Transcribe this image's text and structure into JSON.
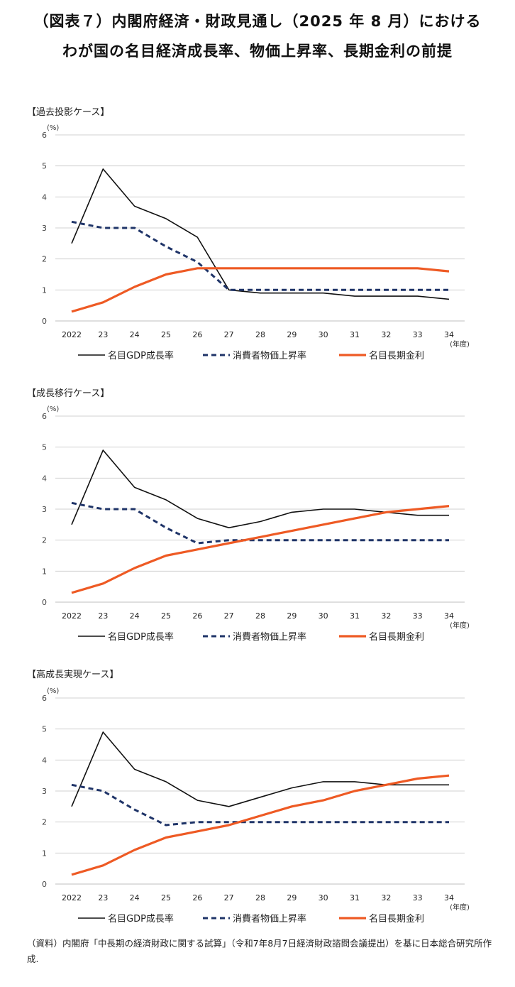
{
  "title_line1": "（図表７）内閣府経済・財政見通し（2025 年 8 月）における",
  "title_line2": "わが国の名目経済成長率、物価上昇率、長期金利の前提",
  "source_note": "（資料）内閣府「中長期の経済財政に関する試算」（令和7年8月7日経済財政諮問会議提出）を基に日本総合研究所作成.",
  "colors": {
    "gdp": "#111111",
    "cpi": "#1f3468",
    "rate": "#ee5a24",
    "grid": "#d0d0d0"
  },
  "chart_data": [
    {
      "type": "line",
      "title": "【過去投影ケース】",
      "unit_label": "(%)",
      "x_unit_label": "(年度)",
      "categories": [
        "2022",
        "23",
        "24",
        "25",
        "26",
        "27",
        "28",
        "29",
        "30",
        "31",
        "32",
        "33",
        "34"
      ],
      "ylim": [
        0,
        6
      ],
      "yticks": [
        "0",
        "1",
        "2",
        "3",
        "4",
        "5",
        "6"
      ],
      "series": [
        {
          "name": "名目GDP成長率",
          "key": "gdp",
          "values": [
            2.5,
            4.9,
            3.7,
            3.3,
            2.7,
            1.0,
            0.9,
            0.9,
            0.9,
            0.8,
            0.8,
            0.8,
            0.7
          ]
        },
        {
          "name": "消費者物価上昇率",
          "key": "cpi",
          "values": [
            3.2,
            3.0,
            3.0,
            2.4,
            1.9,
            1.0,
            1.0,
            1.0,
            1.0,
            1.0,
            1.0,
            1.0,
            1.0
          ]
        },
        {
          "name": "名目長期金利",
          "key": "rate",
          "values": [
            0.3,
            0.6,
            1.1,
            1.5,
            1.7,
            1.7,
            1.7,
            1.7,
            1.7,
            1.7,
            1.7,
            1.7,
            1.6
          ]
        }
      ]
    },
    {
      "type": "line",
      "title": "【成長移行ケース】",
      "unit_label": "(%)",
      "x_unit_label": "(年度)",
      "categories": [
        "2022",
        "23",
        "24",
        "25",
        "26",
        "27",
        "28",
        "29",
        "30",
        "31",
        "32",
        "33",
        "34"
      ],
      "ylim": [
        0,
        6
      ],
      "yticks": [
        "0",
        "1",
        "2",
        "3",
        "4",
        "5",
        "6"
      ],
      "series": [
        {
          "name": "名目GDP成長率",
          "key": "gdp",
          "values": [
            2.5,
            4.9,
            3.7,
            3.3,
            2.7,
            2.4,
            2.6,
            2.9,
            3.0,
            3.0,
            2.9,
            2.8,
            2.8
          ]
        },
        {
          "name": "消費者物価上昇率",
          "key": "cpi",
          "values": [
            3.2,
            3.0,
            3.0,
            2.4,
            1.9,
            2.0,
            2.0,
            2.0,
            2.0,
            2.0,
            2.0,
            2.0,
            2.0
          ]
        },
        {
          "name": "名目長期金利",
          "key": "rate",
          "values": [
            0.3,
            0.6,
            1.1,
            1.5,
            1.7,
            1.9,
            2.1,
            2.3,
            2.5,
            2.7,
            2.9,
            3.0,
            3.1
          ]
        }
      ]
    },
    {
      "type": "line",
      "title": "【高成長実現ケース】",
      "unit_label": "(%)",
      "x_unit_label": "(年度)",
      "categories": [
        "2022",
        "23",
        "24",
        "25",
        "26",
        "27",
        "28",
        "29",
        "30",
        "31",
        "32",
        "33",
        "34"
      ],
      "ylim": [
        0,
        6
      ],
      "yticks": [
        "0",
        "1",
        "2",
        "3",
        "4",
        "5",
        "6"
      ],
      "series": [
        {
          "name": "名目GDP成長率",
          "key": "gdp",
          "values": [
            2.5,
            4.9,
            3.7,
            3.3,
            2.7,
            2.5,
            2.8,
            3.1,
            3.3,
            3.3,
            3.2,
            3.2,
            3.2
          ]
        },
        {
          "name": "消費者物価上昇率",
          "key": "cpi",
          "values": [
            3.2,
            3.0,
            2.4,
            1.9,
            2.0,
            2.0,
            2.0,
            2.0,
            2.0,
            2.0,
            2.0,
            2.0,
            2.0
          ]
        },
        {
          "name": "名目長期金利",
          "key": "rate",
          "values": [
            0.3,
            0.6,
            1.1,
            1.5,
            1.7,
            1.9,
            2.2,
            2.5,
            2.7,
            3.0,
            3.2,
            3.4,
            3.5
          ]
        }
      ]
    }
  ]
}
